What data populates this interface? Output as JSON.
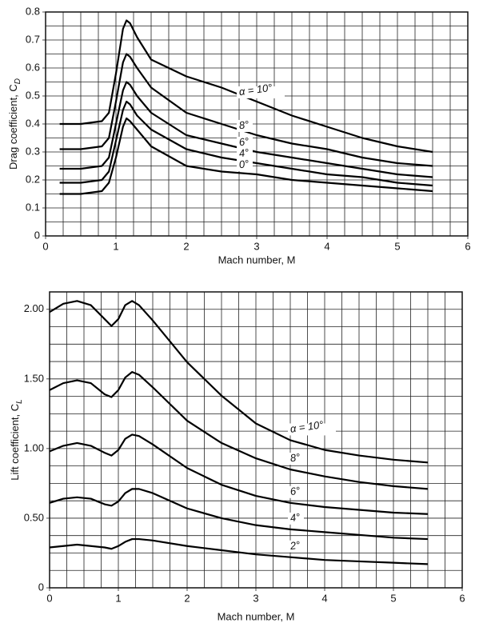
{
  "chart_data": [
    {
      "type": "line",
      "xlabel": "Mach number, M",
      "ylabel": "Drag coefficient, C",
      "ylabel_subscript": "D",
      "x": [
        0.2,
        0.5,
        0.8,
        0.9,
        1.0,
        1.1,
        1.15,
        1.2,
        1.3,
        1.5,
        2.0,
        2.5,
        3.0,
        3.5,
        4.0,
        4.5,
        5.0,
        5.5
      ],
      "series": [
        {
          "name": "α = 10°",
          "color": "#000000",
          "values": [
            0.4,
            0.4,
            0.41,
            0.44,
            0.58,
            0.74,
            0.77,
            0.76,
            0.71,
            0.63,
            0.57,
            0.53,
            0.48,
            0.43,
            0.39,
            0.35,
            0.32,
            0.3
          ]
        },
        {
          "name": "8°",
          "color": "#000000",
          "values": [
            0.31,
            0.31,
            0.32,
            0.35,
            0.48,
            0.62,
            0.65,
            0.64,
            0.6,
            0.53,
            0.44,
            0.4,
            0.36,
            0.33,
            0.31,
            0.28,
            0.26,
            0.25
          ]
        },
        {
          "name": "6°",
          "color": "#000000",
          "values": [
            0.24,
            0.24,
            0.25,
            0.28,
            0.4,
            0.52,
            0.55,
            0.54,
            0.5,
            0.44,
            0.36,
            0.33,
            0.3,
            0.28,
            0.26,
            0.24,
            0.22,
            0.21
          ]
        },
        {
          "name": "4°",
          "color": "#000000",
          "values": [
            0.19,
            0.19,
            0.2,
            0.23,
            0.34,
            0.45,
            0.48,
            0.47,
            0.43,
            0.38,
            0.31,
            0.28,
            0.26,
            0.24,
            0.22,
            0.21,
            0.19,
            0.18
          ]
        },
        {
          "name": "0°",
          "color": "#000000",
          "values": [
            0.15,
            0.15,
            0.16,
            0.19,
            0.28,
            0.39,
            0.42,
            0.41,
            0.38,
            0.32,
            0.25,
            0.23,
            0.22,
            0.2,
            0.19,
            0.18,
            0.17,
            0.16
          ]
        }
      ],
      "xlim": [
        0,
        6
      ],
      "xticks": [
        0,
        1,
        2,
        3,
        4,
        5,
        6
      ],
      "ylim": [
        0,
        0.8
      ],
      "yticks": [
        0,
        0.1,
        0.2,
        0.3,
        0.4,
        0.5,
        0.6,
        0.7,
        0.8
      ],
      "grid": true,
      "x_minor_divisions": 4,
      "y_minor_divisions": 2
    },
    {
      "type": "line",
      "xlabel": "Mach number, M",
      "ylabel": "Lift coefficient, C",
      "ylabel_subscript": "L",
      "x": [
        0,
        0.2,
        0.4,
        0.6,
        0.8,
        0.9,
        1.0,
        1.1,
        1.2,
        1.3,
        1.5,
        2.0,
        2.5,
        3.0,
        3.5,
        4.0,
        4.5,
        5.0,
        5.5
      ],
      "series": [
        {
          "name": "α = 10°",
          "color": "#000000",
          "values": [
            1.98,
            2.04,
            2.06,
            2.03,
            1.93,
            1.88,
            1.93,
            2.03,
            2.06,
            2.03,
            1.92,
            1.62,
            1.38,
            1.18,
            1.06,
            0.99,
            0.95,
            0.92,
            0.9
          ]
        },
        {
          "name": "8°",
          "color": "#000000",
          "values": [
            1.42,
            1.47,
            1.49,
            1.47,
            1.39,
            1.37,
            1.42,
            1.51,
            1.55,
            1.53,
            1.44,
            1.2,
            1.04,
            0.93,
            0.85,
            0.8,
            0.76,
            0.73,
            0.71
          ]
        },
        {
          "name": "6°",
          "color": "#000000",
          "values": [
            0.98,
            1.02,
            1.04,
            1.02,
            0.97,
            0.95,
            0.99,
            1.07,
            1.1,
            1.09,
            1.03,
            0.86,
            0.74,
            0.66,
            0.61,
            0.58,
            0.56,
            0.54,
            0.53
          ]
        },
        {
          "name": "4°",
          "color": "#000000",
          "values": [
            0.61,
            0.64,
            0.65,
            0.64,
            0.6,
            0.59,
            0.62,
            0.68,
            0.71,
            0.71,
            0.68,
            0.57,
            0.5,
            0.45,
            0.42,
            0.4,
            0.38,
            0.36,
            0.35
          ]
        },
        {
          "name": "2°",
          "color": "#000000",
          "values": [
            0.29,
            0.3,
            0.31,
            0.3,
            0.29,
            0.28,
            0.3,
            0.33,
            0.35,
            0.35,
            0.34,
            0.3,
            0.27,
            0.24,
            0.22,
            0.2,
            0.19,
            0.18,
            0.17
          ]
        }
      ],
      "xlim": [
        0,
        6
      ],
      "xticks": [
        0,
        1,
        2,
        3,
        4,
        5,
        6
      ],
      "ylim": [
        0,
        2.125
      ],
      "yticks": [
        0,
        {
          "value": 0.5,
          "label": "0.50"
        },
        {
          "value": 1,
          "label": "1.00"
        },
        {
          "value": 1.5,
          "label": "1.50"
        },
        {
          "value": 2,
          "label": "2.00"
        }
      ],
      "grid": true,
      "x_minor_divisions": 4,
      "y_minor_divisions": 4
    }
  ]
}
